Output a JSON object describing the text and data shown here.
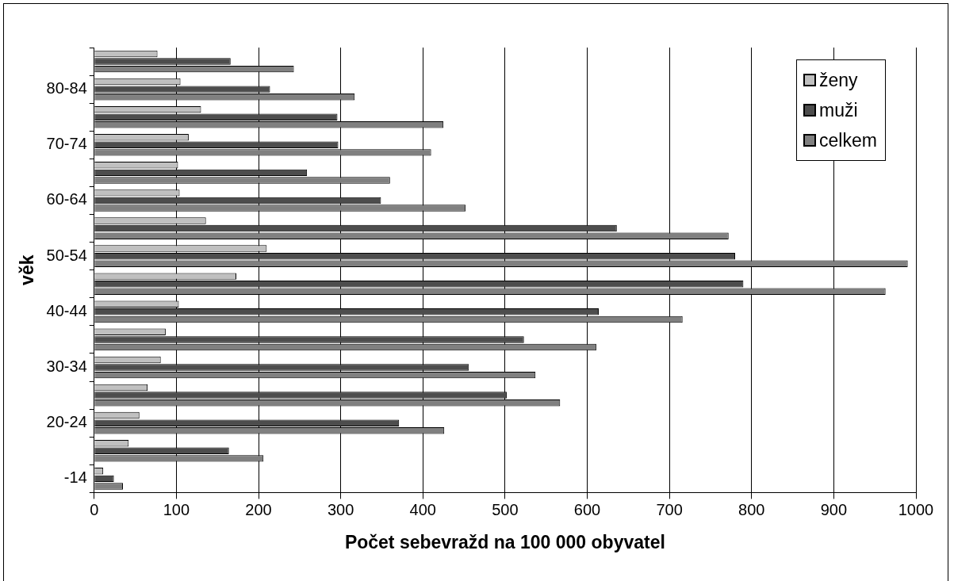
{
  "chart_data": {
    "type": "bar",
    "orientation": "horizontal",
    "xlabel": "Počet sebevražd na 100 000 obyvatel",
    "ylabel": "věk",
    "categories": [
      null,
      "80-84",
      null,
      "70-74",
      null,
      "60-64",
      null,
      "50-54",
      null,
      "40-44",
      null,
      "30-34",
      null,
      "20-24",
      null,
      "-14"
    ],
    "series": [
      {
        "name": "ženy",
        "color": "#c0c0c0",
        "values": [
          77,
          105,
          130,
          115,
          102,
          104,
          136,
          210,
          173,
          103,
          87,
          81,
          65,
          55,
          42,
          11
        ]
      },
      {
        "name": "muži",
        "color": "#4d4d4d",
        "values": [
          166,
          214,
          296,
          297,
          259,
          349,
          636,
          780,
          790,
          614,
          523,
          456,
          502,
          371,
          164,
          24
        ]
      },
      {
        "name": "celkem",
        "color": "#808080",
        "values": [
          243,
          317,
          425,
          410,
          360,
          452,
          772,
          990,
          963,
          716,
          611,
          537,
          567,
          426,
          206,
          35
        ]
      }
    ],
    "xlim": [
      0,
      1000
    ],
    "xticks": [
      0,
      100,
      200,
      300,
      400,
      500,
      600,
      700,
      800,
      900,
      1000
    ],
    "grid": "x",
    "legend": "top right"
  }
}
